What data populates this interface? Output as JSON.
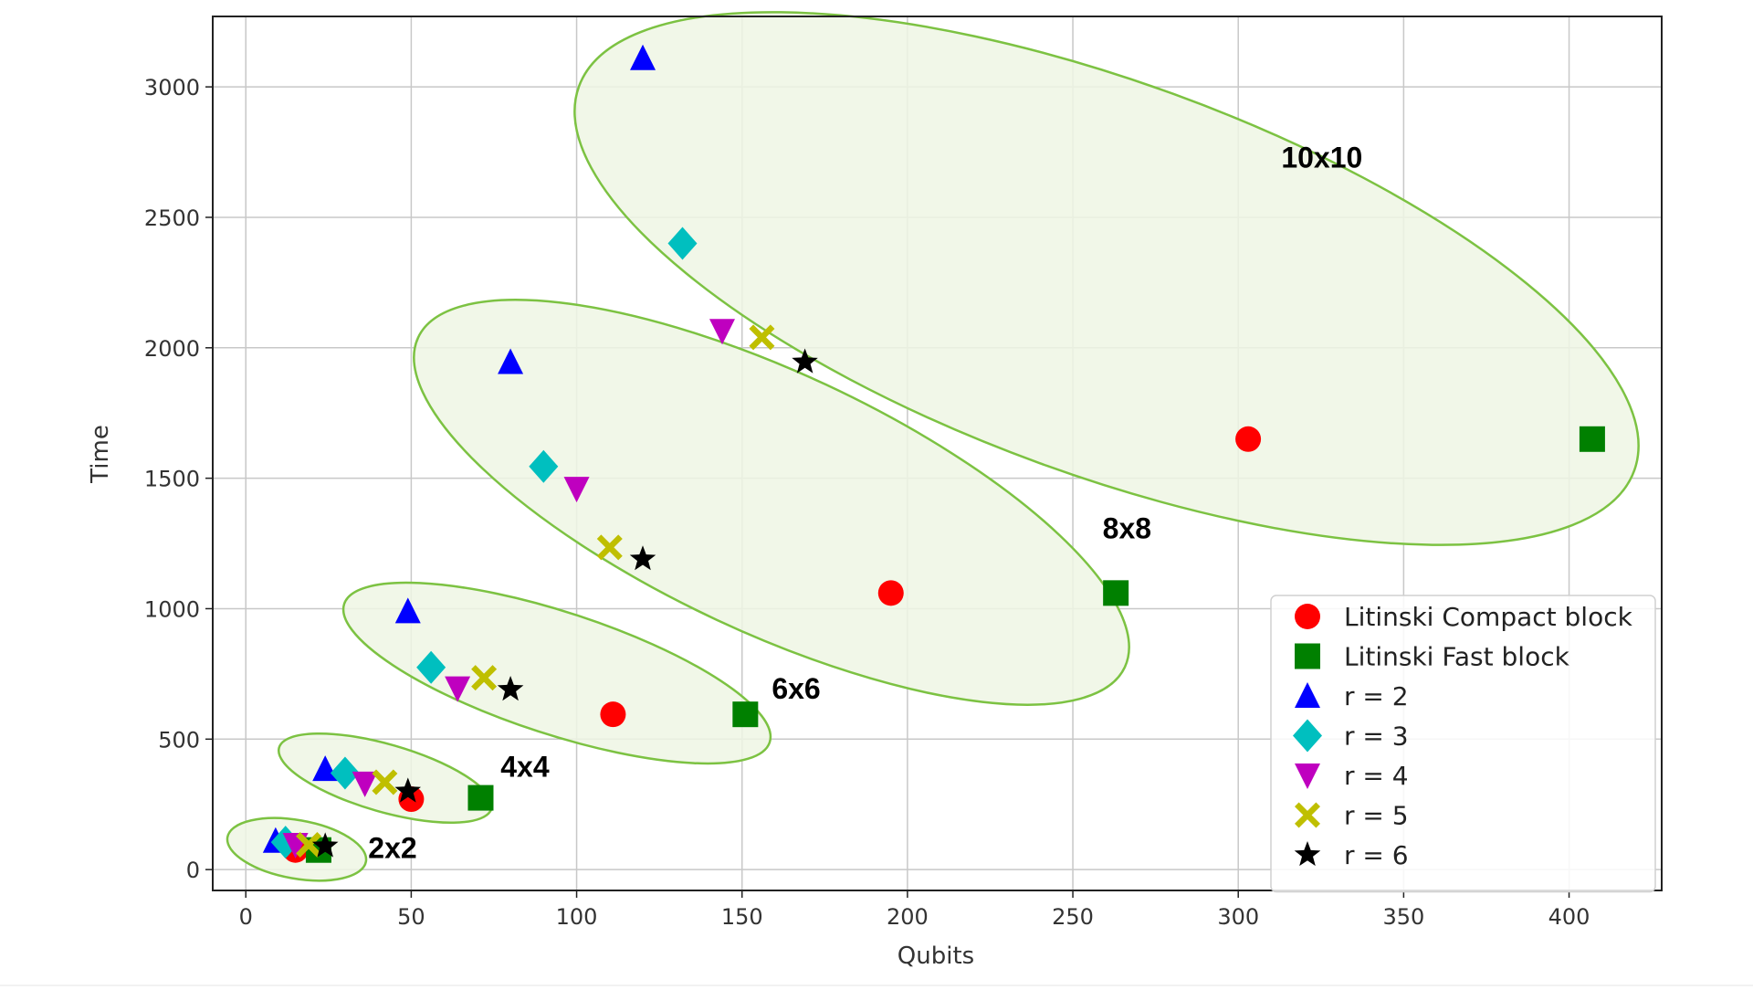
{
  "chart_data": {
    "type": "scatter",
    "title": "",
    "xlabel": "Qubits",
    "ylabel": "Time",
    "xlim": [
      -10,
      428
    ],
    "ylim": [
      -80,
      3270
    ],
    "xticks": [
      0,
      50,
      100,
      150,
      200,
      250,
      300,
      350,
      400
    ],
    "yticks": [
      0,
      500,
      1000,
      1500,
      2000,
      2500,
      3000
    ],
    "grid": true,
    "legend_position": "lower-right",
    "series": [
      {
        "name": "Litinski Compact block",
        "marker": "circle",
        "color": "#ff0000",
        "points": [
          {
            "x": 15,
            "y": 75
          },
          {
            "x": 50,
            "y": 270
          },
          {
            "x": 111,
            "y": 595
          },
          {
            "x": 195,
            "y": 1060
          },
          {
            "x": 303,
            "y": 1650
          }
        ]
      },
      {
        "name": "Litinski Fast block",
        "marker": "square",
        "color": "#008000",
        "points": [
          {
            "x": 22,
            "y": 75
          },
          {
            "x": 71,
            "y": 275
          },
          {
            "x": 151,
            "y": 595
          },
          {
            "x": 263,
            "y": 1060
          },
          {
            "x": 407,
            "y": 1650
          }
        ]
      },
      {
        "name": "r = 2",
        "marker": "triangle-up",
        "color": "#0000ff",
        "points": [
          {
            "x": 9,
            "y": 110
          },
          {
            "x": 24,
            "y": 385
          },
          {
            "x": 49,
            "y": 990
          },
          {
            "x": 80,
            "y": 1945
          },
          {
            "x": 120,
            "y": 3110
          }
        ]
      },
      {
        "name": "r = 3",
        "marker": "diamond",
        "color": "#00bfbf",
        "points": [
          {
            "x": 12,
            "y": 105
          },
          {
            "x": 30,
            "y": 370
          },
          {
            "x": 56,
            "y": 775
          },
          {
            "x": 90,
            "y": 1545
          },
          {
            "x": 132,
            "y": 2400
          }
        ]
      },
      {
        "name": "r = 4",
        "marker": "triangle-down",
        "color": "#bf00bf",
        "points": [
          {
            "x": 15,
            "y": 95
          },
          {
            "x": 36,
            "y": 330
          },
          {
            "x": 64,
            "y": 695
          },
          {
            "x": 100,
            "y": 1460
          },
          {
            "x": 144,
            "y": 2065
          }
        ]
      },
      {
        "name": "r = 5",
        "marker": "x-filled",
        "color": "#bfbf00",
        "points": [
          {
            "x": 19,
            "y": 95
          },
          {
            "x": 42,
            "y": 335
          },
          {
            "x": 72,
            "y": 735
          },
          {
            "x": 110,
            "y": 1235
          },
          {
            "x": 156,
            "y": 2040
          }
        ]
      },
      {
        "name": "r = 6",
        "marker": "star",
        "color": "#000000",
        "points": [
          {
            "x": 24,
            "y": 90
          },
          {
            "x": 49,
            "y": 300
          },
          {
            "x": 80,
            "y": 690
          },
          {
            "x": 120,
            "y": 1190
          },
          {
            "x": 169,
            "y": 1945
          }
        ]
      }
    ],
    "groups": [
      {
        "label": "2x2",
        "label_at": {
          "x": 37,
          "y": 45
        }
      },
      {
        "label": "4x4",
        "label_at": {
          "x": 77,
          "y": 355
        }
      },
      {
        "label": "6x6",
        "label_at": {
          "x": 159,
          "y": 655
        }
      },
      {
        "label": "8x8",
        "label_at": {
          "x": 259,
          "y": 1270
        }
      },
      {
        "label": "10x10",
        "label_at": {
          "x": 313,
          "y": 2690
        }
      }
    ]
  }
}
